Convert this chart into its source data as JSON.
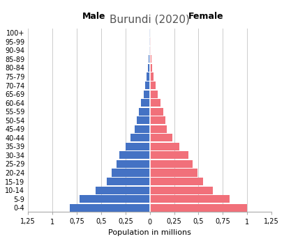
{
  "title": "Burundi (2020)",
  "age_groups": [
    "0-4",
    "5-9",
    "10-14",
    "15-19",
    "20-24",
    "25-29",
    "30-34",
    "35-39",
    "40-44",
    "45-49",
    "50-54",
    "55-59",
    "60-64",
    "65-69",
    "70-74",
    "75-79",
    "80-84",
    "85-89",
    "90-94",
    "95-99",
    "100+"
  ],
  "male": [
    0.82,
    0.72,
    0.56,
    0.44,
    0.395,
    0.345,
    0.31,
    0.25,
    0.195,
    0.155,
    0.135,
    0.115,
    0.09,
    0.065,
    0.046,
    0.03,
    0.02,
    0.012,
    0.007,
    0.004,
    0.002
  ],
  "female": [
    1.0,
    0.82,
    0.65,
    0.545,
    0.49,
    0.44,
    0.395,
    0.3,
    0.23,
    0.175,
    0.16,
    0.14,
    0.11,
    0.08,
    0.057,
    0.04,
    0.025,
    0.016,
    0.01,
    0.006,
    0.003
  ],
  "male_color": "#4472C4",
  "female_color": "#F1707A",
  "xlim": 1.25,
  "xlabel": "Population in millions",
  "male_label": "Male",
  "female_label": "Female",
  "background_color": "#ffffff",
  "grid_color": "#cccccc",
  "tick_vals": [
    -1.25,
    -1.0,
    -0.75,
    -0.5,
    -0.25,
    0.0,
    0.25,
    0.5,
    0.75,
    1.0,
    1.25
  ],
  "tick_labels": [
    "1,25",
    "1",
    "0,75",
    "0,5",
    "0,25",
    "0",
    "0,25",
    "0,5",
    "0,75",
    "1",
    "1,25"
  ],
  "title_color": "#555555",
  "title_fontsize": 11,
  "label_fontsize": 8,
  "tick_fontsize": 7,
  "ytick_fontsize": 7,
  "bar_height": 0.88
}
